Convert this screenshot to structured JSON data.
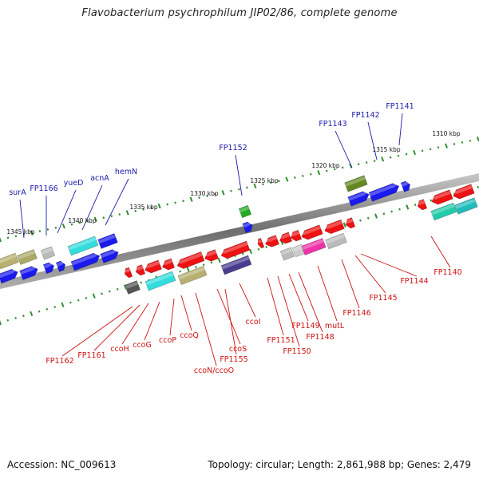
{
  "title": "Flavobacterium psychrophilum JIP02/86, complete genome",
  "footer": {
    "accession": "Accession: NC_009613",
    "summary": "Topology: circular; Length: 2,861,988 bp; Genes: 2,479"
  },
  "scale_labels": [
    "1345 kbp",
    "1340 kbp",
    "1335 kbp",
    "1330 kbp",
    "1325 kbp",
    "1320 kbp",
    "1315 kbp",
    "1310 kbp"
  ],
  "upper_gene_labels": [
    "surA",
    "FP1166",
    "yueD",
    "acnA",
    "hemN",
    "FP1152",
    "FP1143",
    "FP1142",
    "FP1141"
  ],
  "lower_gene_labels": [
    "FP1162",
    "FP1161",
    "ccoH",
    "ccoG",
    "ccoP",
    "ccoQ",
    "ccoN/ccoO",
    "ccoS",
    "FP1155",
    "ccoI",
    "FP1151",
    "FP1150",
    "FP1149",
    "FP1148",
    "mutL",
    "FP1146",
    "FP1145",
    "FP1144",
    "FP1140"
  ],
  "colors": {
    "forward_strand": "#1a1aee",
    "reverse_strand": "#ee1111",
    "label_blue": "#1a1aaa",
    "label_red": "#cc1111",
    "scale_ticks": "#2f8f2f",
    "backbone": "#808080"
  }
}
